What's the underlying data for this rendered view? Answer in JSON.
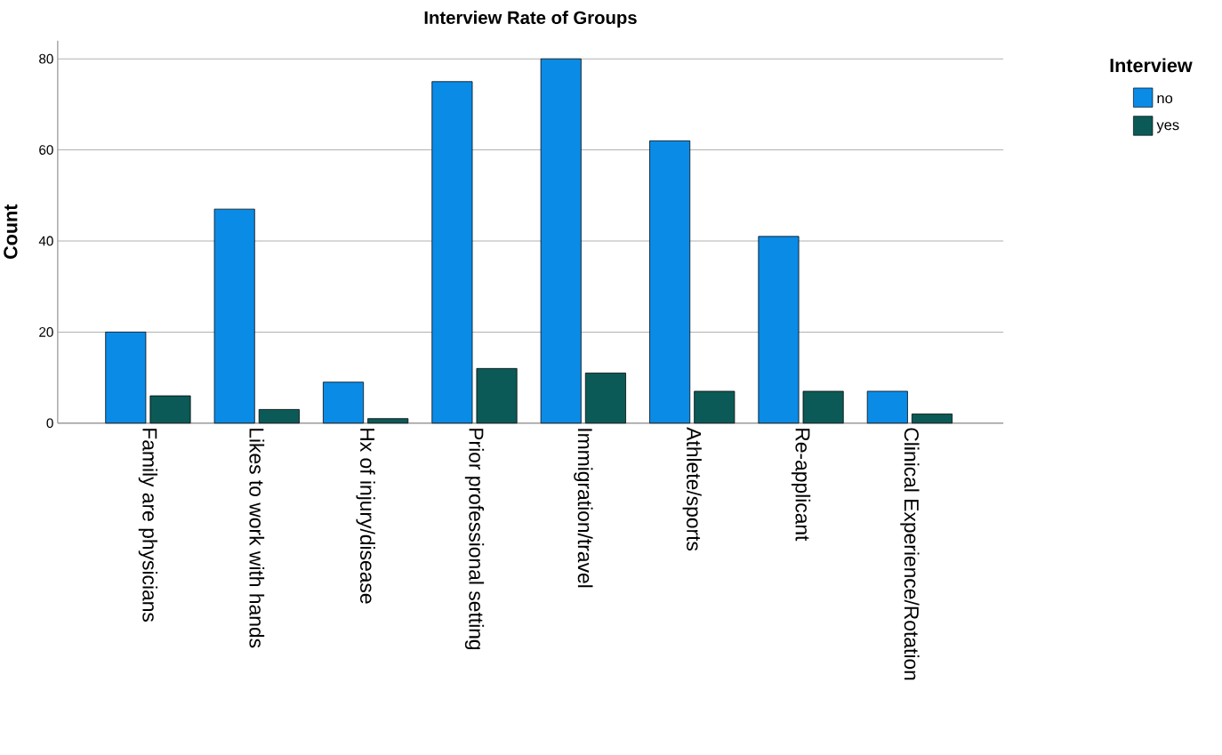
{
  "chart_data": {
    "type": "bar",
    "title": "Interview Rate of Groups",
    "ylabel": "Count",
    "legend_title": "Interview",
    "categories": [
      "Family are physicians",
      "Likes to work with hands",
      "Hx of injury/disease",
      "Prior professional setting",
      "Immigration/travel",
      "Athlete/sports",
      "Re-applicant",
      "Clinical Experience/Rotation"
    ],
    "series": [
      {
        "name": "no",
        "color": "#0a8be6",
        "values": [
          20,
          47,
          9,
          75,
          80,
          62,
          41,
          7
        ]
      },
      {
        "name": "yes",
        "color": "#0b5a57",
        "values": [
          6,
          3,
          1,
          12,
          11,
          7,
          7,
          2
        ]
      }
    ],
    "ylim": [
      0,
      84
    ],
    "yticks": [
      0,
      20,
      40,
      60,
      80
    ],
    "grid": "y",
    "legend": "top right"
  }
}
